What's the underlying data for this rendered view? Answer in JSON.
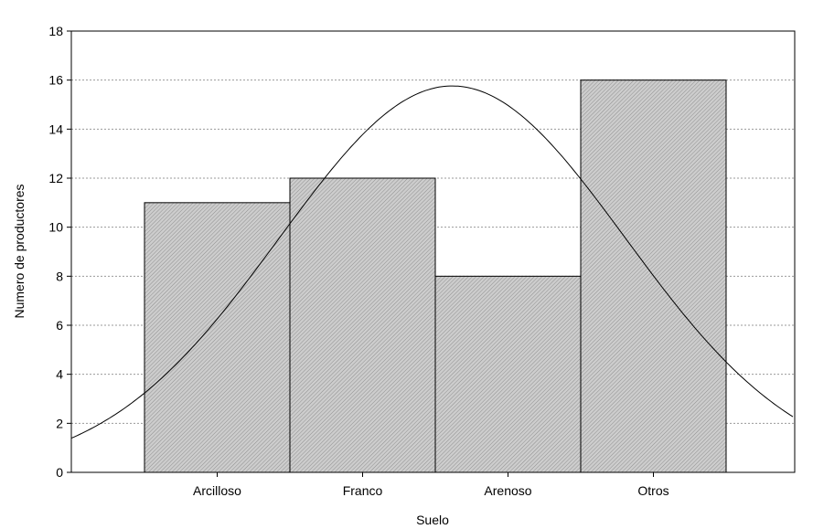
{
  "chart_data": {
    "type": "bar",
    "title": "",
    "xlabel": "Suelo",
    "ylabel": "Numero de productores",
    "categories": [
      "Arcilloso",
      "Franco",
      "Arenoso",
      "Otros"
    ],
    "values": [
      11,
      12,
      8,
      16
    ],
    "ylim": [
      0,
      18
    ],
    "yticks": [
      0,
      2,
      4,
      6,
      8,
      10,
      12,
      14,
      16,
      18
    ],
    "grid": true,
    "legend": "none",
    "bar_fill": "#c8c8c8",
    "bar_stroke": "#000000",
    "curve_color": "#000000",
    "grid_color": "#9a9a9a"
  }
}
